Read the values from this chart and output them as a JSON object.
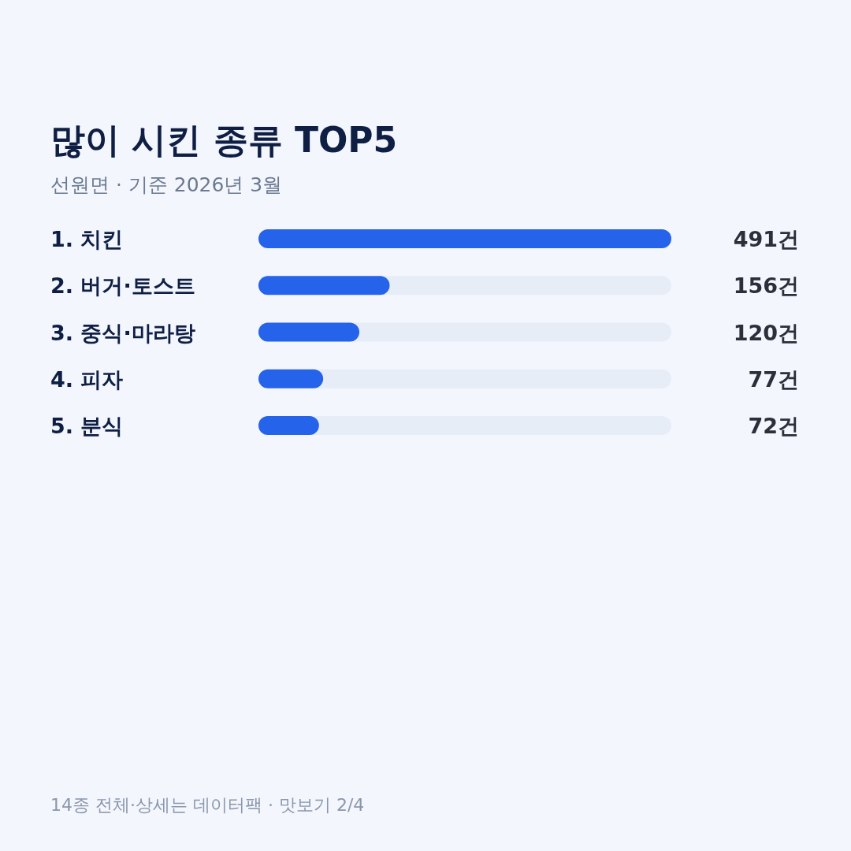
{
  "chart_data": {
    "type": "bar",
    "orientation": "horizontal",
    "title": "많이 시킨 종류 TOP5",
    "subtitle": "선원면 · 기준 2026년 3월",
    "categories": [
      "1. 치킨",
      "2. 버거·토스트",
      "3. 중식·마라탕",
      "4. 피자",
      "5. 분식"
    ],
    "values": [
      491,
      156,
      120,
      77,
      72
    ],
    "color": "#2563eb",
    "value_labels": [
      "491건",
      "156건",
      "120건",
      "77건",
      "72건"
    ],
    "annotations": [
      "14종 전체·상세는 데이터팩 · 맛보기 2/4"
    ]
  }
}
